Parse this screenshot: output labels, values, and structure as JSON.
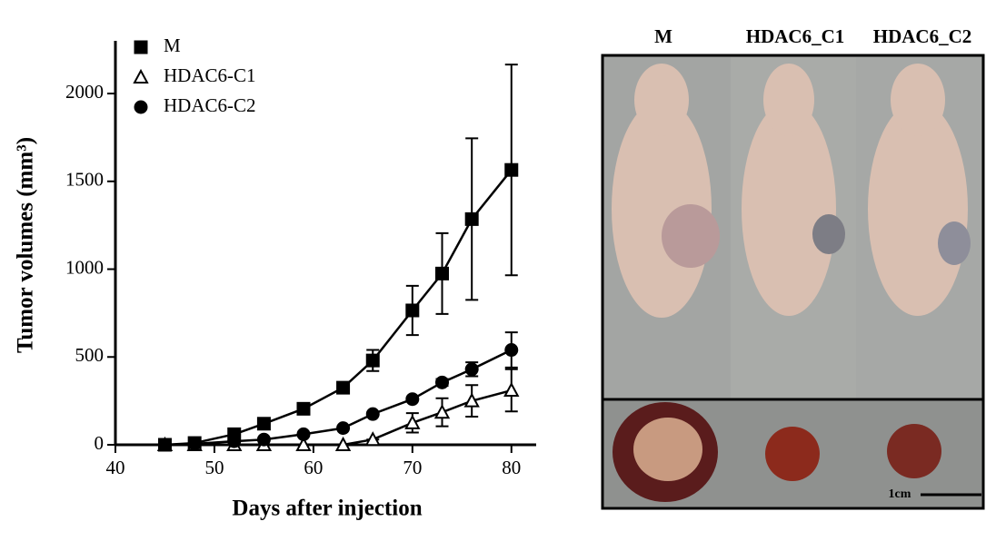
{
  "chart_data": {
    "type": "line",
    "xlabel": "Days after injection",
    "ylabel": "Tumor volumes (mm³)",
    "x": [
      45,
      48,
      52,
      55,
      59,
      63,
      66,
      70,
      73,
      76,
      80
    ],
    "xlim": [
      40,
      82.5
    ],
    "xticks": [
      40,
      50,
      60,
      70,
      80
    ],
    "ylim": [
      0,
      2300
    ],
    "yticks": [
      0,
      500,
      1000,
      1500,
      2000
    ],
    "legend": "upper left",
    "series": [
      {
        "name": "M",
        "color": "#000000",
        "marker": "square",
        "filled": true,
        "values": [
          0,
          10,
          60,
          120,
          205,
          325,
          480,
          765,
          975,
          1285,
          1565
        ],
        "errors": [
          0,
          0,
          0,
          0,
          0,
          0,
          60,
          140,
          230,
          460,
          600
        ]
      },
      {
        "name": "HDAC6-C1",
        "color": "#000000",
        "marker": "triangle",
        "filled": false,
        "values": [
          0,
          0,
          0,
          0,
          0,
          0,
          30,
          125,
          185,
          250,
          310
        ],
        "errors": [
          0,
          0,
          0,
          0,
          0,
          0,
          0,
          55,
          80,
          90,
          120
        ]
      },
      {
        "name": "HDAC6-C2",
        "color": "#000000",
        "marker": "circle",
        "filled": true,
        "values": [
          0,
          5,
          20,
          30,
          60,
          95,
          175,
          260,
          355,
          430,
          540
        ],
        "errors": [
          0,
          0,
          0,
          0,
          0,
          0,
          0,
          0,
          20,
          40,
          100
        ]
      }
    ]
  },
  "photo_panel": {
    "labels": [
      "M",
      "HDAC6_C1",
      "HDAC6_C2"
    ],
    "scale_bar": "1cm"
  }
}
